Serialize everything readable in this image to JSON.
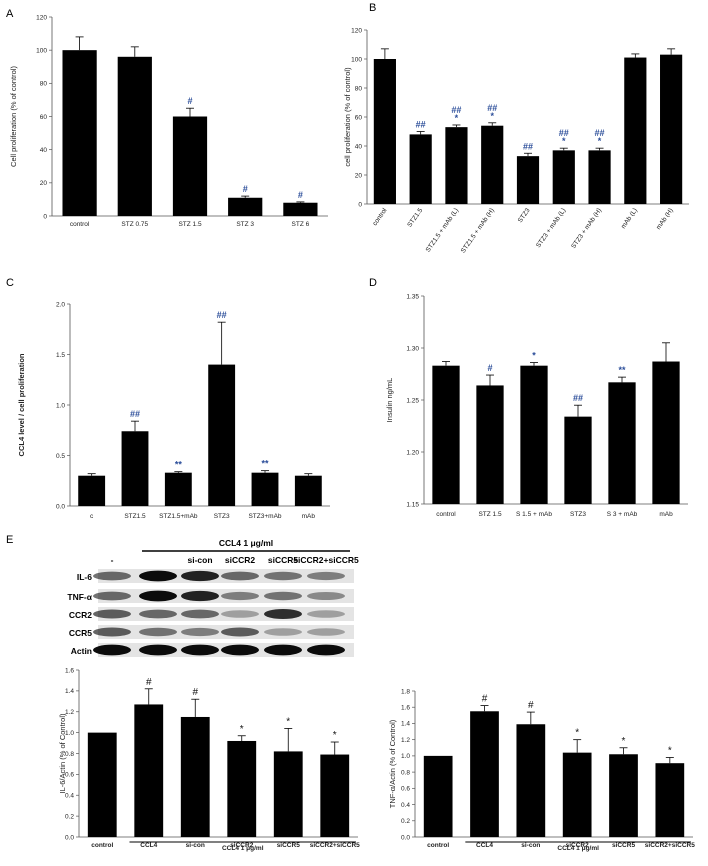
{
  "chart_data": [
    {
      "id": "A",
      "type": "bar",
      "panel_label": "A",
      "ylabel": "Cell proliferation (% of control)",
      "ylim": [
        0,
        120
      ],
      "yticks": [
        0,
        20,
        40,
        60,
        80,
        100,
        120
      ],
      "categories": [
        "control",
        "STZ 0.75",
        "STZ 1.5",
        "STZ 3",
        "STZ 6"
      ],
      "values": [
        100,
        96,
        60,
        11,
        8
      ],
      "errors": [
        8,
        6,
        5,
        1,
        0.5
      ],
      "annotations": [
        "",
        "",
        "#",
        "#",
        "#"
      ]
    },
    {
      "id": "B",
      "type": "bar",
      "panel_label": "B",
      "ylabel": "cell proliferation (% of control)",
      "ylim": [
        0,
        120
      ],
      "yticks": [
        0,
        20,
        40,
        60,
        80,
        100,
        120
      ],
      "categories": [
        "control",
        "STZ1.5",
        "STZ1.5 + mAb (L)",
        "STZ1.5 + mAb (H)",
        "STZ3",
        "STZ3 + mAb (L)",
        "STZ3 + mAb (H)",
        "mAb (L)",
        "mAb (H)"
      ],
      "values": [
        100,
        48,
        53,
        54,
        33,
        37,
        37,
        101,
        103
      ],
      "errors": [
        7,
        2,
        1.5,
        2,
        2,
        1.5,
        1.5,
        2.5,
        4
      ],
      "annotations": [
        "",
        "##",
        "##\n*",
        "##\n*",
        "##",
        "##\n*",
        "##\n*",
        "",
        ""
      ]
    },
    {
      "id": "C",
      "type": "bar",
      "panel_label": "C",
      "ylabel": "CCL4 level / cell proliferation",
      "ylim": [
        0,
        2.0
      ],
      "yticks": [
        "0.0",
        "0.5",
        "1.0",
        "1.5",
        "2.0"
      ],
      "categories": [
        "c",
        "STZ1.5",
        "STZ1.5+mAb",
        "STZ3",
        "STZ3+mAb",
        "mAb"
      ],
      "values": [
        0.3,
        0.74,
        0.33,
        1.4,
        0.33,
        0.3
      ],
      "errors": [
        0.02,
        0.1,
        0.01,
        0.42,
        0.02,
        0.02
      ],
      "annotations": [
        "",
        "##",
        "**",
        "##",
        "**",
        ""
      ]
    },
    {
      "id": "D",
      "type": "bar",
      "panel_label": "D",
      "ylabel": "Insulin ng/mL",
      "ylim": [
        1.15,
        1.35
      ],
      "yticks": [
        "1.15",
        "1.20",
        "1.25",
        "1.30",
        "1.35"
      ],
      "categories": [
        "control",
        "STZ 1.5",
        "S 1.5 + mAb",
        "STZ3",
        "S 3 + mAb",
        "mAb"
      ],
      "values": [
        1.283,
        1.264,
        1.283,
        1.234,
        1.267,
        1.287
      ],
      "errors": [
        0.004,
        0.01,
        0.003,
        0.011,
        0.005,
        0.018
      ],
      "annotations": [
        "",
        "#",
        "*",
        "##",
        "**",
        ""
      ]
    },
    {
      "id": "E1",
      "type": "bar",
      "ylabel": "IL-6/Actin (% of Control)",
      "ylim": [
        0,
        1.6
      ],
      "yticks": [
        "0.0",
        "0.2",
        "0.4",
        "0.6",
        "0.8",
        "1.0",
        "1.2",
        "1.4",
        "1.6"
      ],
      "categories": [
        "control",
        "CCL4",
        "si-con",
        "siCCR2",
        "siCCR5",
        "siCCR2+siCCR5"
      ],
      "values": [
        1.0,
        1.27,
        1.15,
        0.92,
        0.82,
        0.79
      ],
      "errors": [
        0,
        0.15,
        0.17,
        0.05,
        0.22,
        0.12
      ],
      "annotations": [
        "",
        "#",
        "#",
        "*",
        "*",
        "*"
      ],
      "group_label": "CCL4 1 μg/ml"
    },
    {
      "id": "E2",
      "type": "bar",
      "ylabel": "TNF-α/Actin (% of Control)",
      "ylim": [
        0,
        1.8
      ],
      "yticks": [
        "0.0",
        "0.2",
        "0.4",
        "0.6",
        "0.8",
        "1.0",
        "1.2",
        "1.4",
        "1.6",
        "1.8"
      ],
      "categories": [
        "control",
        "CCL4",
        "si-con",
        "siCCR2",
        "siCCR5",
        "siCCR2+siCCR5"
      ],
      "values": [
        1.0,
        1.55,
        1.39,
        1.04,
        1.02,
        0.91
      ],
      "errors": [
        0,
        0.07,
        0.15,
        0.16,
        0.08,
        0.07
      ],
      "annotations": [
        "",
        "#",
        "#",
        "*",
        "*",
        "*"
      ],
      "group_label": "CCL4 1 μg/ml"
    }
  ],
  "western_blot": {
    "panel_label": "E",
    "treatment_label": "CCL4 1 μg/ml",
    "lanes": [
      "-",
      "",
      "si-con",
      "siCCR2",
      "siCCR5",
      "siCCR2+siCCR5"
    ],
    "rows": [
      "IL-6",
      "TNF-α",
      "CCR2",
      "CCR5",
      "Actin"
    ]
  }
}
